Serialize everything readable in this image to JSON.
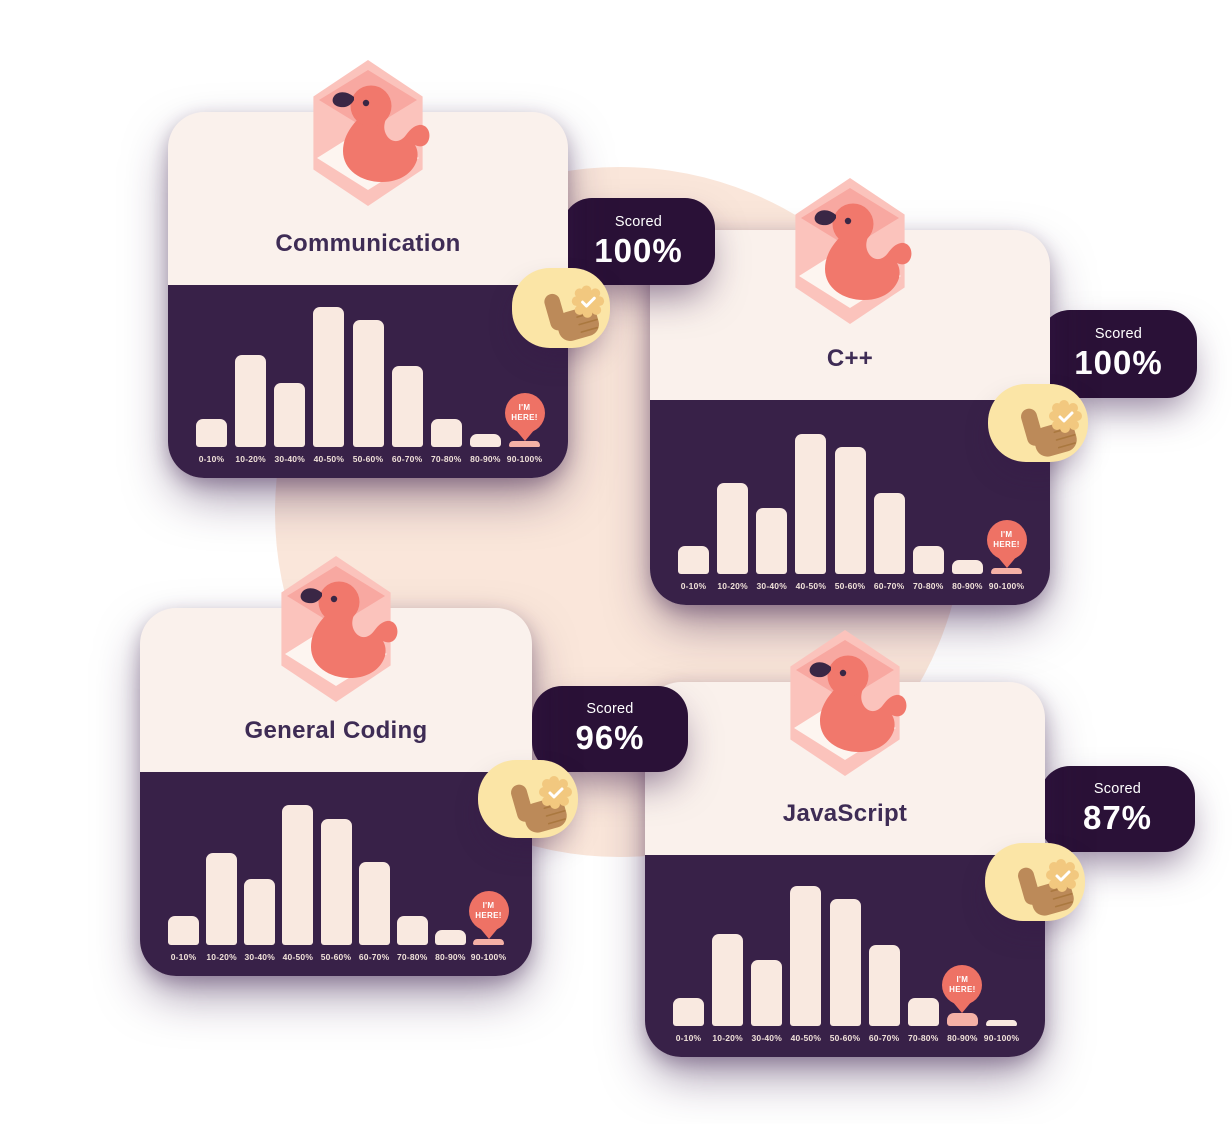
{
  "page": {
    "background": "#ffffff",
    "decor_blob_color": "#fae6da"
  },
  "colors": {
    "chart_panel": "#382148",
    "score_badge": "#2a1137",
    "card_cream": "#faf1ec",
    "bar": "#f9e9e0",
    "bar_marked": "#f5b1a6",
    "pin": "#ee7265",
    "title_text": "#3e2c55",
    "axis_text": "#f0e1d9",
    "thumb_badge_bg": "#fbe5a6",
    "thumb_hand": "#bc8a59",
    "duck": "#f1786c",
    "hexagon": "#fbc3bc"
  },
  "icons": {
    "mascot": "duck-in-hex-box-icon",
    "approval": "thumbs-up-icon",
    "verified": "check-badge-icon",
    "marker": "location-pin-icon"
  },
  "cards": [
    {
      "title": "Communication",
      "score_label": "Scored",
      "score_value": "100%"
    },
    {
      "title": "C++",
      "score_label": "Scored",
      "score_value": "100%"
    },
    {
      "title": "General Coding",
      "score_label": "Scored",
      "score_value": "96%"
    },
    {
      "title": "JavaScript",
      "score_label": "Scored",
      "score_value": "87%"
    }
  ],
  "chart_data": [
    {
      "type": "bar",
      "title": "Communication score distribution",
      "categories": [
        "0-10%",
        "10-20%",
        "30-40%",
        "40-50%",
        "50-60%",
        "60-70%",
        "70-80%",
        "80-90%",
        "90-100%"
      ],
      "values": [
        20,
        66,
        46,
        100,
        91,
        58,
        20,
        9,
        4
      ],
      "xlabel": "",
      "ylabel": "",
      "ylim": [
        0,
        100
      ],
      "grid": false,
      "legend": false,
      "annotation": "I'M HERE!",
      "marker_index": 8,
      "marker_bucket": "90-100%"
    },
    {
      "type": "bar",
      "title": "C++ score distribution",
      "categories": [
        "0-10%",
        "10-20%",
        "30-40%",
        "40-50%",
        "50-60%",
        "60-70%",
        "70-80%",
        "80-90%",
        "90-100%"
      ],
      "values": [
        20,
        65,
        47,
        100,
        91,
        58,
        20,
        10,
        4
      ],
      "xlabel": "",
      "ylabel": "",
      "ylim": [
        0,
        100
      ],
      "grid": false,
      "legend": false,
      "annotation": "I'M HERE!",
      "marker_index": 8,
      "marker_bucket": "90-100%"
    },
    {
      "type": "bar",
      "title": "General Coding score distribution",
      "categories": [
        "0-10%",
        "10-20%",
        "30-40%",
        "40-50%",
        "50-60%",
        "60-70%",
        "70-80%",
        "80-90%",
        "90-100%"
      ],
      "values": [
        21,
        66,
        47,
        100,
        90,
        59,
        21,
        11,
        4
      ],
      "xlabel": "",
      "ylabel": "",
      "ylim": [
        0,
        100
      ],
      "grid": false,
      "legend": false,
      "annotation": "I'M HERE!",
      "marker_index": 8,
      "marker_bucket": "90-100%"
    },
    {
      "type": "bar",
      "title": "JavaScript score distribution",
      "categories": [
        "0-10%",
        "10-20%",
        "30-40%",
        "40-50%",
        "50-60%",
        "60-70%",
        "70-80%",
        "80-90%",
        "90-100%"
      ],
      "values": [
        20,
        66,
        47,
        100,
        91,
        58,
        20,
        9,
        4
      ],
      "xlabel": "",
      "ylabel": "",
      "ylim": [
        0,
        100
      ],
      "grid": false,
      "legend": false,
      "annotation": "I'M HERE!",
      "marker_index": 7,
      "marker_bucket": "80-90%"
    }
  ]
}
